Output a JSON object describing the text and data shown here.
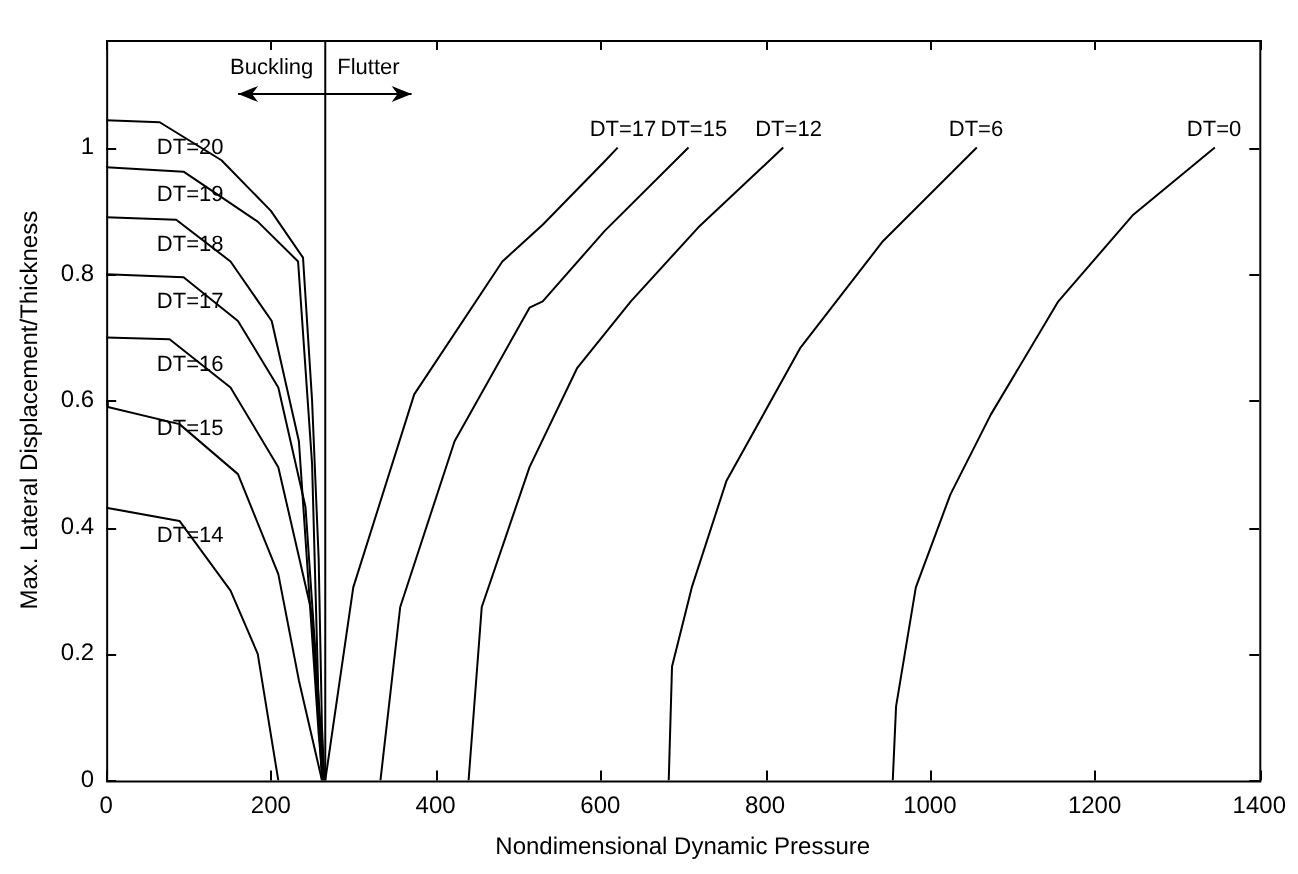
{
  "chart_data": {
    "type": "line",
    "xlabel": "Nondimensional Dynamic Pressure",
    "ylabel": "Max. Lateral Displacement/Thickness",
    "xlim": [
      0,
      1400
    ],
    "ylim": [
      0,
      1.17
    ],
    "xticks": [
      0,
      200,
      400,
      600,
      800,
      1000,
      1200,
      1400
    ],
    "yticks": [
      0,
      0.2,
      0.4,
      0.6,
      0.8,
      1
    ],
    "grid": false,
    "legend": false,
    "marker": "none",
    "line_style": "solid",
    "series": [
      {
        "name": "DT=20",
        "color": "#000000",
        "x": [
          0,
          65,
          140,
          200,
          239,
          250,
          258,
          262,
          265
        ],
        "values": [
          1.043,
          1.04,
          0.98,
          0.9,
          0.826,
          0.6,
          0.35,
          0.085,
          0
        ]
      },
      {
        "name": "DT=19",
        "color": "#000000",
        "x": [
          0,
          94,
          184,
          233,
          250,
          258,
          264
        ],
        "values": [
          0.969,
          0.962,
          0.883,
          0.82,
          0.5,
          0.117,
          0
        ]
      },
      {
        "name": "DT=18",
        "color": "#000000",
        "x": [
          0,
          85,
          151,
          201,
          234,
          258,
          263
        ],
        "values": [
          0.89,
          0.886,
          0.82,
          0.726,
          0.536,
          0.074,
          0
        ]
      },
      {
        "name": "DT=17",
        "color": "#000000",
        "x": [
          0,
          94,
          160,
          209,
          242,
          262,
          264
        ],
        "values": [
          0.8,
          0.795,
          0.726,
          0.621,
          0.432,
          0.053,
          0
        ]
      },
      {
        "name": "DT=16",
        "color": "#000000",
        "x": [
          0,
          77,
          151,
          209,
          250,
          258,
          262
        ],
        "values": [
          0.7,
          0.697,
          0.621,
          0.495,
          0.263,
          0.095,
          0
        ]
      },
      {
        "name": "DT=15",
        "color": "#000000",
        "x": [
          0,
          2,
          89,
          160,
          209,
          234,
          262
        ],
        "values": [
          0.6,
          0.59,
          0.563,
          0.484,
          0.326,
          0.158,
          0
        ]
      },
      {
        "name": "DT=14",
        "color": "#000000",
        "x": [
          0,
          89,
          151,
          184,
          209
        ],
        "values": [
          0.431,
          0.41,
          0.3,
          0.2,
          0
        ]
      },
      {
        "name": "DT=17",
        "color": "#000000",
        "x": [
          266,
          300,
          374,
          481,
          530,
          605,
          621
        ],
        "values": [
          0,
          0.305,
          0.61,
          0.82,
          0.878,
          0.978,
          1
        ]
      },
      {
        "name": "DT=15",
        "color": "#000000",
        "x": [
          333,
          357,
          423,
          514,
          530,
          605,
          707
        ],
        "values": [
          0,
          0.274,
          0.536,
          0.747,
          0.757,
          0.868,
          1
        ]
      },
      {
        "name": "DT=12",
        "color": "#000000",
        "x": [
          440,
          456,
          514,
          572,
          637,
          719,
          822
        ],
        "values": [
          0,
          0.274,
          0.495,
          0.652,
          0.757,
          0.874,
          1
        ]
      },
      {
        "name": "DT=6",
        "color": "#000000",
        "x": [
          683,
          687,
          711,
          753,
          843,
          943,
          1057
        ],
        "values": [
          0,
          0.18,
          0.305,
          0.473,
          0.684,
          0.852,
          1
        ]
      },
      {
        "name": "DT=0",
        "color": "#000000",
        "x": [
          955,
          959,
          983,
          1025,
          1074,
          1156,
          1247,
          1346
        ],
        "values": [
          0,
          0.117,
          0.305,
          0.452,
          0.578,
          0.757,
          0.894,
          1
        ]
      }
    ],
    "ref_lines": [
      {
        "axis": "x",
        "value": 266,
        "color": "#000000"
      }
    ],
    "annotations": [
      "Buckling",
      "Flutter"
    ]
  }
}
